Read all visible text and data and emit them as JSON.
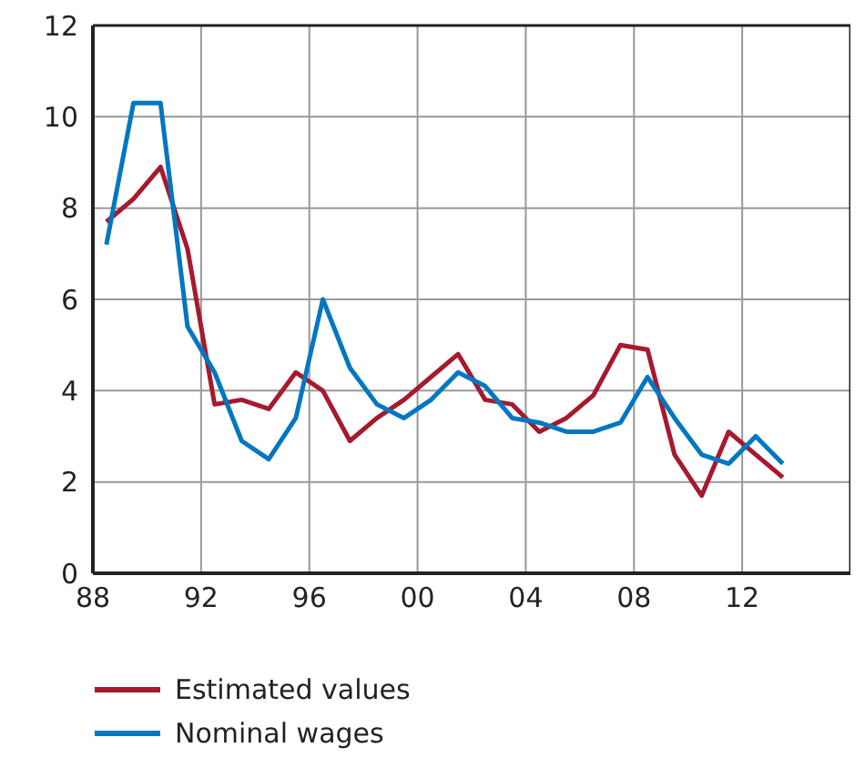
{
  "chart_data": {
    "type": "line",
    "x": [
      1988.5,
      1989.5,
      1990.5,
      1991.5,
      1992.5,
      1993.5,
      1994.5,
      1995.5,
      1996.5,
      1997.5,
      1998.5,
      1999.5,
      2000.5,
      2001.5,
      2002.5,
      2003.5,
      2004.5,
      2005.5,
      2006.5,
      2007.5,
      2008.5,
      2009.5,
      2010.5,
      2011.5,
      2012.5,
      2013.5
    ],
    "series": [
      {
        "name": "Estimated values",
        "color": "#a6192e",
        "values": [
          7.7,
          8.2,
          8.9,
          7.1,
          3.7,
          3.8,
          3.6,
          4.4,
          4.0,
          2.9,
          3.4,
          3.8,
          4.3,
          4.8,
          3.8,
          3.7,
          3.1,
          3.4,
          3.9,
          5.0,
          4.9,
          2.6,
          1.7,
          3.1,
          2.6,
          2.1
        ]
      },
      {
        "name": "Nominal wages",
        "color": "#0077c0",
        "values": [
          7.2,
          10.3,
          10.3,
          5.4,
          4.4,
          2.9,
          2.5,
          3.4,
          6.0,
          4.5,
          3.7,
          3.4,
          3.8,
          4.4,
          4.1,
          3.4,
          3.3,
          3.1,
          3.1,
          3.3,
          4.3,
          3.4,
          2.6,
          2.4,
          3.0,
          2.4
        ]
      }
    ],
    "xlim": [
      1988,
      2016
    ],
    "xticks": [
      {
        "value": 1988,
        "label": "88"
      },
      {
        "value": 1992,
        "label": "92"
      },
      {
        "value": 1996,
        "label": "96"
      },
      {
        "value": 2000,
        "label": "00"
      },
      {
        "value": 2004,
        "label": "04"
      },
      {
        "value": 2008,
        "label": "08"
      },
      {
        "value": 2012,
        "label": "12"
      }
    ],
    "ylim": [
      0,
      12
    ],
    "yticks": [
      0,
      2,
      4,
      6,
      8,
      10,
      12
    ],
    "grid": true,
    "legend": "bottom",
    "marker": "none",
    "line_style": "solid"
  }
}
